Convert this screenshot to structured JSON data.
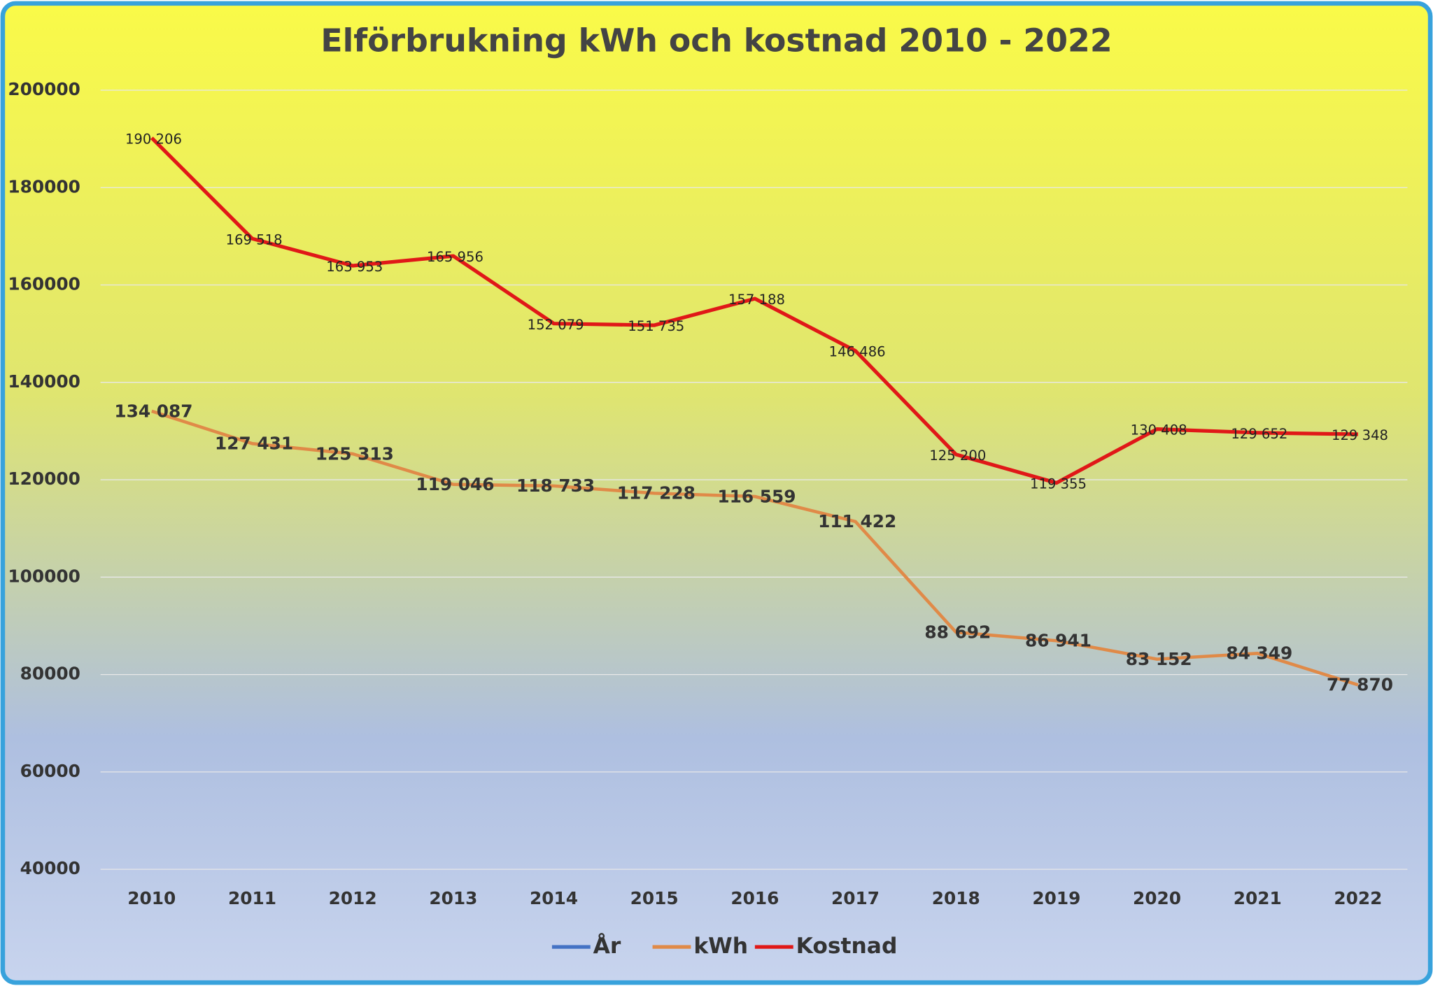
{
  "chart_data": {
    "type": "line",
    "title": "Elförbrukning kWh och kostnad 2010 - 2022",
    "categories": [
      "2010",
      "2011",
      "2012",
      "2013",
      "2014",
      "2015",
      "2016",
      "2017",
      "2018",
      "2019",
      "2020",
      "2021",
      "2022"
    ],
    "series": [
      {
        "name": "År",
        "color": "#4472c4"
      },
      {
        "name": "kWh",
        "color": "#e08a48",
        "values": [
          134087,
          127431,
          125313,
          119046,
          118733,
          117228,
          116559,
          111422,
          88692,
          86941,
          83152,
          84349,
          77870
        ],
        "value_labels": [
          "134 087",
          "127 431",
          "125 313",
          "119 046",
          "118 733",
          "117 228",
          "116 559",
          "111 422",
          "88 692",
          "86 941",
          "83 152",
          "84 349",
          "77 870"
        ]
      },
      {
        "name": "Kostnad",
        "color": "#e01818",
        "values": [
          190206,
          169518,
          163953,
          165956,
          152079,
          151735,
          157188,
          146486,
          125200,
          119355,
          130408,
          129652,
          129348
        ],
        "value_labels": [
          "190 206",
          "169 518",
          "163 953",
          "165 956",
          "152 079",
          "151 735",
          "157 188",
          "146 486",
          "125 200",
          "119 355",
          "130 408",
          "129 652",
          "129 348"
        ]
      }
    ],
    "ylim": [
      40000,
      200000
    ],
    "yticks": [
      40000,
      60000,
      80000,
      100000,
      120000,
      140000,
      160000,
      180000,
      200000
    ],
    "grid": true,
    "legend": "bottom"
  }
}
